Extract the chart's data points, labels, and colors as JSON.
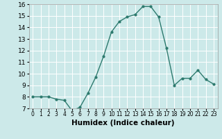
{
  "x": [
    0,
    1,
    2,
    3,
    4,
    5,
    6,
    7,
    8,
    9,
    10,
    11,
    12,
    13,
    14,
    15,
    16,
    17,
    18,
    19,
    20,
    21,
    22,
    23
  ],
  "y": [
    8.0,
    8.0,
    8.0,
    7.8,
    7.7,
    6.8,
    7.1,
    8.3,
    9.7,
    11.5,
    13.6,
    14.5,
    14.9,
    15.1,
    15.8,
    15.8,
    14.9,
    12.2,
    9.0,
    9.6,
    9.6,
    10.3,
    9.5,
    9.1
  ],
  "line_color": "#2d7a6e",
  "marker": "o",
  "marker_size": 2.0,
  "line_width": 1.0,
  "xlabel": "Humidex (Indice chaleur)",
  "xlim": [
    -0.5,
    23.5
  ],
  "ylim": [
    7,
    16
  ],
  "yticks": [
    7,
    8,
    9,
    10,
    11,
    12,
    13,
    14,
    15,
    16
  ],
  "xticks": [
    0,
    1,
    2,
    3,
    4,
    5,
    6,
    7,
    8,
    9,
    10,
    11,
    12,
    13,
    14,
    15,
    16,
    17,
    18,
    19,
    20,
    21,
    22,
    23
  ],
  "background_color": "#cce9e9",
  "grid_color": "#ffffff",
  "x_tick_fontsize": 5.5,
  "y_tick_fontsize": 6.5,
  "xlabel_fontsize": 7.5
}
